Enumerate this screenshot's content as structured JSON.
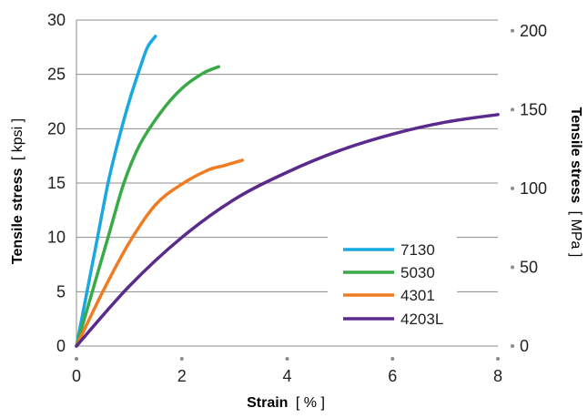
{
  "chart_data": {
    "type": "line",
    "xlabel": {
      "main": "Strain",
      "unit": "[ % ]"
    },
    "ylabel_left": {
      "main": "Tensile stress",
      "unit": "[ kpsi ]"
    },
    "ylabel_right": {
      "main": "Tensile stress",
      "unit": "[ MPa ]"
    },
    "xlim": [
      0,
      8
    ],
    "ylim_left": [
      0,
      30
    ],
    "ylim_right": [
      0,
      206.8
    ],
    "x_ticks": [
      0,
      2,
      4,
      6,
      8
    ],
    "y_left_ticks": [
      0,
      5,
      10,
      15,
      20,
      25,
      30
    ],
    "y_right_ticks": [
      0,
      50,
      100,
      150,
      200
    ],
    "grid": "horizontal",
    "legend_position": "bottom-right",
    "series": [
      {
        "name": "7130",
        "color": "#1aa8e0",
        "points": [
          [
            0,
            0
          ],
          [
            0.2,
            5
          ],
          [
            0.4,
            10
          ],
          [
            0.6,
            15
          ],
          [
            0.8,
            19
          ],
          [
            1.0,
            22.5
          ],
          [
            1.2,
            25.5
          ],
          [
            1.35,
            27.5
          ],
          [
            1.5,
            28.5
          ]
        ]
      },
      {
        "name": "5030",
        "color": "#3aaa48",
        "points": [
          [
            0,
            0
          ],
          [
            0.3,
            5
          ],
          [
            0.6,
            10
          ],
          [
            0.9,
            15
          ],
          [
            1.2,
            18.5
          ],
          [
            1.6,
            21.5
          ],
          [
            2.0,
            23.7
          ],
          [
            2.4,
            25.1
          ],
          [
            2.7,
            25.7
          ]
        ]
      },
      {
        "name": "4301",
        "color": "#f07c22",
        "points": [
          [
            0,
            0
          ],
          [
            0.5,
            5
          ],
          [
            1.0,
            9.5
          ],
          [
            1.5,
            13
          ],
          [
            2.0,
            14.9
          ],
          [
            2.5,
            16.2
          ],
          [
            2.8,
            16.6
          ],
          [
            3.15,
            17.1
          ]
        ]
      },
      {
        "name": "4203L",
        "color": "#5a2a8c",
        "points": [
          [
            0,
            0
          ],
          [
            1,
            5.5
          ],
          [
            2,
            10
          ],
          [
            3,
            13.5
          ],
          [
            4,
            16
          ],
          [
            5,
            18
          ],
          [
            6,
            19.5
          ],
          [
            7,
            20.6
          ],
          [
            8,
            21.3
          ]
        ]
      }
    ]
  }
}
